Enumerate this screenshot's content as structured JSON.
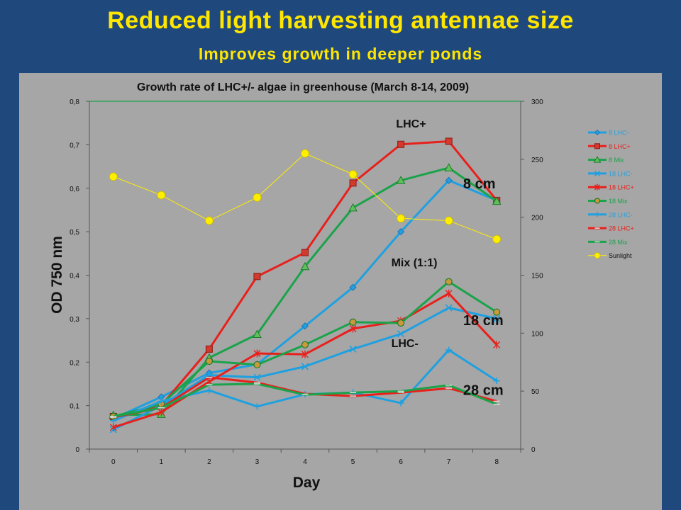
{
  "slide": {
    "title": "Reduced light harvesting antennae size",
    "subtitle": "Improves growth in deeper ponds"
  },
  "chart_data": {
    "type": "line",
    "title": "Growth rate of LHC+/- algae  in greenhouse (March 8-14, 2009)",
    "xlabel": "Day",
    "ylabel": "OD  750 nm",
    "x": [
      0,
      1,
      2,
      3,
      4,
      5,
      6,
      7,
      8
    ],
    "x_ticks": [
      "0",
      "1",
      "2",
      "3",
      "4",
      "5",
      "6",
      "7",
      "8"
    ],
    "ylim": [
      0,
      0.8
    ],
    "y_ticks": [
      "0",
      "0,1",
      "0,2",
      "0,3",
      "0,4",
      "0,5",
      "0,6",
      "0,7",
      "0,8"
    ],
    "y2lim": [
      0,
      300
    ],
    "y2_ticks": [
      "0",
      "50",
      "100",
      "150",
      "200",
      "250",
      "300"
    ],
    "legend_position": "right",
    "grid": false,
    "series": [
      {
        "name": "8 LHC-",
        "color": "#1FA0E0",
        "marker": "diamond",
        "axis": "left",
        "values": [
          0.07,
          0.12,
          0.175,
          0.195,
          0.283,
          0.372,
          0.5,
          0.618,
          0.572
        ]
      },
      {
        "name": "8 LHC+",
        "color": "#E8201C",
        "marker": "square",
        "axis": "left",
        "values": [
          0.075,
          0.1,
          0.23,
          0.397,
          0.452,
          0.612,
          0.701,
          0.708,
          0.572
        ]
      },
      {
        "name": "8 Mix",
        "color": "#1AA34A",
        "marker": "triangle",
        "axis": "left",
        "values": [
          0.078,
          0.08,
          0.21,
          0.264,
          0.42,
          0.555,
          0.618,
          0.647,
          0.57
        ]
      },
      {
        "name": "18 LHC-",
        "color": "#1FA0E0",
        "marker": "x",
        "axis": "left",
        "values": [
          0.045,
          0.1,
          0.17,
          0.165,
          0.19,
          0.23,
          0.265,
          0.325,
          0.3
        ]
      },
      {
        "name": "18 LHC+",
        "color": "#E8201C",
        "marker": "star",
        "axis": "left",
        "values": [
          0.05,
          0.085,
          0.155,
          0.22,
          0.218,
          0.277,
          0.295,
          0.358,
          0.24
        ]
      },
      {
        "name": "18 Mix",
        "color": "#1AA34A",
        "marker": "circle",
        "axis": "left",
        "values": [
          0.075,
          0.103,
          0.202,
          0.194,
          0.24,
          0.292,
          0.29,
          0.385,
          0.315
        ]
      },
      {
        "name": "28 LHC-",
        "color": "#1FA0E0",
        "marker": "plus",
        "axis": "left",
        "values": [
          0.065,
          0.11,
          0.135,
          0.098,
          0.126,
          0.13,
          0.106,
          0.228,
          0.157
        ]
      },
      {
        "name": "28 LHC+",
        "color": "#E8201C",
        "marker": "dash",
        "axis": "left",
        "values": [
          0.073,
          0.095,
          0.165,
          0.153,
          0.127,
          0.122,
          0.13,
          0.14,
          0.11
        ]
      },
      {
        "name": "28 Mix",
        "color": "#1AA34A",
        "marker": "dash",
        "axis": "left",
        "values": [
          0.075,
          0.095,
          0.148,
          0.15,
          0.125,
          0.13,
          0.133,
          0.147,
          0.103
        ]
      },
      {
        "name": "Sunlight",
        "color": "#FFEE00",
        "marker": "circle",
        "axis": "right",
        "thin": true,
        "values": [
          235,
          219,
          197,
          217,
          255,
          237,
          199,
          197,
          181
        ]
      }
    ],
    "annotations": [
      {
        "text": "LHC+",
        "x": 5.9,
        "y": 0.74,
        "size": 16
      },
      {
        "text": "8 cm",
        "x": 7.3,
        "y": 0.6,
        "size": 20
      },
      {
        "text": "Mix (1:1)",
        "x": 5.8,
        "y": 0.42,
        "size": 16
      },
      {
        "text": "18 cm",
        "x": 7.3,
        "y": 0.285,
        "size": 20
      },
      {
        "text": "LHC-",
        "x": 5.8,
        "y": 0.235,
        "size": 16
      },
      {
        "text": "28 cm",
        "x": 7.3,
        "y": 0.125,
        "size": 20
      }
    ]
  }
}
